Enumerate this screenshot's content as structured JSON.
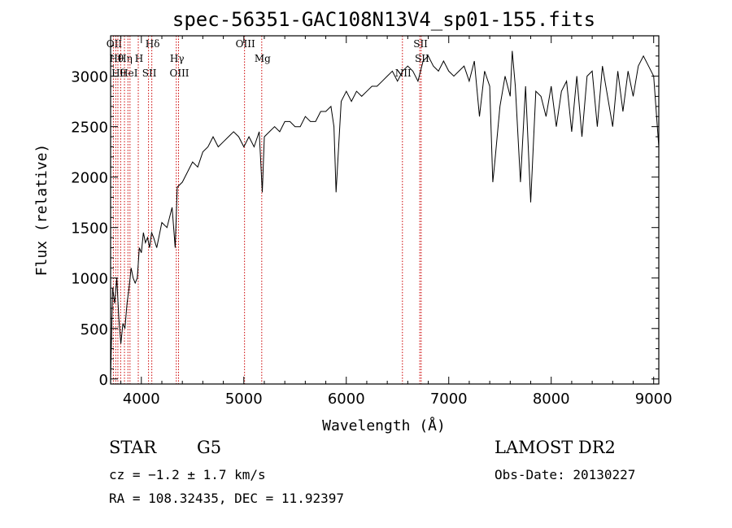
{
  "chart_data": {
    "type": "line",
    "title": "spec-56351-GAC108N13V4_sp01-155.fits",
    "xlabel": "Wavelength (Å)",
    "ylabel": "Flux (relative)",
    "xlim": [
      3700,
      9050
    ],
    "ylim": [
      -50,
      3400
    ],
    "xticks": [
      4000,
      5000,
      6000,
      7000,
      8000,
      9000
    ],
    "yticks": [
      0,
      500,
      1000,
      1500,
      2000,
      2500,
      3000
    ],
    "grid": false,
    "series": [
      {
        "x": [
          3700,
          3720,
          3740,
          3760,
          3780,
          3800,
          3820,
          3840,
          3860,
          3880,
          3900,
          3920,
          3940,
          3960,
          3980,
          4000,
          4020,
          4040,
          4060,
          4080,
          4100,
          4120,
          4150,
          4180,
          4200,
          4250,
          4300,
          4330,
          4350,
          4400,
          4450,
          4500,
          4550,
          4600,
          4650,
          4700,
          4750,
          4800,
          4850,
          4900,
          4950,
          5000,
          5050,
          5100,
          5150,
          5180,
          5200,
          5250,
          5300,
          5350,
          5400,
          5450,
          5500,
          5550,
          5600,
          5650,
          5700,
          5750,
          5800,
          5850,
          5880,
          5900,
          5950,
          6000,
          6050,
          6100,
          6150,
          6200,
          6250,
          6300,
          6350,
          6400,
          6450,
          6500,
          6550,
          6600,
          6650,
          6700,
          6750,
          6800,
          6850,
          6900,
          6950,
          7000,
          7050,
          7100,
          7150,
          7200,
          7250,
          7300,
          7350,
          7400,
          7430,
          7450,
          7500,
          7550,
          7600,
          7620,
          7650,
          7700,
          7750,
          7800,
          7850,
          7900,
          7950,
          8000,
          8050,
          8100,
          8150,
          8200,
          8250,
          8300,
          8350,
          8400,
          8450,
          8500,
          8550,
          8600,
          8650,
          8700,
          8750,
          8800,
          8850,
          8900,
          8950,
          9000,
          9050
        ],
        "values": [
          0,
          900,
          750,
          1000,
          600,
          350,
          550,
          500,
          750,
          900,
          1100,
          1000,
          950,
          1000,
          1300,
          1250,
          1450,
          1350,
          1400,
          1300,
          1450,
          1400,
          1300,
          1450,
          1550,
          1500,
          1700,
          1300,
          1900,
          1950,
          2050,
          2150,
          2100,
          2250,
          2300,
          2400,
          2300,
          2350,
          2400,
          2450,
          2400,
          2300,
          2400,
          2300,
          2450,
          1850,
          2400,
          2450,
          2500,
          2450,
          2550,
          2550,
          2500,
          2500,
          2600,
          2550,
          2550,
          2650,
          2650,
          2700,
          2500,
          1850,
          2750,
          2850,
          2750,
          2850,
          2800,
          2850,
          2900,
          2900,
          2950,
          3000,
          3050,
          2950,
          3050,
          3100,
          3050,
          2950,
          3150,
          3200,
          3100,
          3050,
          3150,
          3050,
          3000,
          3050,
          3100,
          2950,
          3150,
          2600,
          3050,
          2900,
          1950,
          2150,
          2700,
          3000,
          2800,
          3250,
          2900,
          1950,
          2900,
          1750,
          2850,
          2800,
          2600,
          2900,
          2500,
          2850,
          2950,
          2450,
          3000,
          2400,
          3000,
          3050,
          2500,
          3100,
          2800,
          2500,
          3050,
          2650,
          3050,
          2800,
          3100,
          3200,
          3100,
          3000,
          2300
        ]
      }
    ],
    "lines": [
      {
        "wl": 3727,
        "label": "OII"
      },
      {
        "wl": 3750,
        "label": "Hθ"
      },
      {
        "wl": 3771,
        "label": "Hθ"
      },
      {
        "wl": 3798,
        "label": ""
      },
      {
        "wl": 3835,
        "label": "Hη"
      },
      {
        "wl": 3869,
        "label": "HeI"
      },
      {
        "wl": 3889,
        "label": ""
      },
      {
        "wl": 3970,
        "label": "H"
      },
      {
        "wl": 4070,
        "label": "SII"
      },
      {
        "wl": 4102,
        "label": "Hδ"
      },
      {
        "wl": 4341,
        "label": "Hγ"
      },
      {
        "wl": 4363,
        "label": "OIII"
      },
      {
        "wl": 5007,
        "label": "OIII"
      },
      {
        "wl": 5175,
        "label": "Mg"
      },
      {
        "wl": 6548,
        "label": "NII"
      },
      {
        "wl": 6717,
        "label": "SII"
      },
      {
        "wl": 6731,
        "label": "SII"
      }
    ]
  },
  "info": {
    "class": "STAR",
    "subclass": "G5",
    "survey": "LAMOST DR2",
    "cz": "cz = −1.2 ± 1.7 km/s",
    "obs_date": "Obs-Date: 20130227",
    "coords": "RA = 108.32435, DEC =  11.92397"
  },
  "colors": {
    "spectrum": "#000000",
    "line_markers": "#cc0000"
  }
}
